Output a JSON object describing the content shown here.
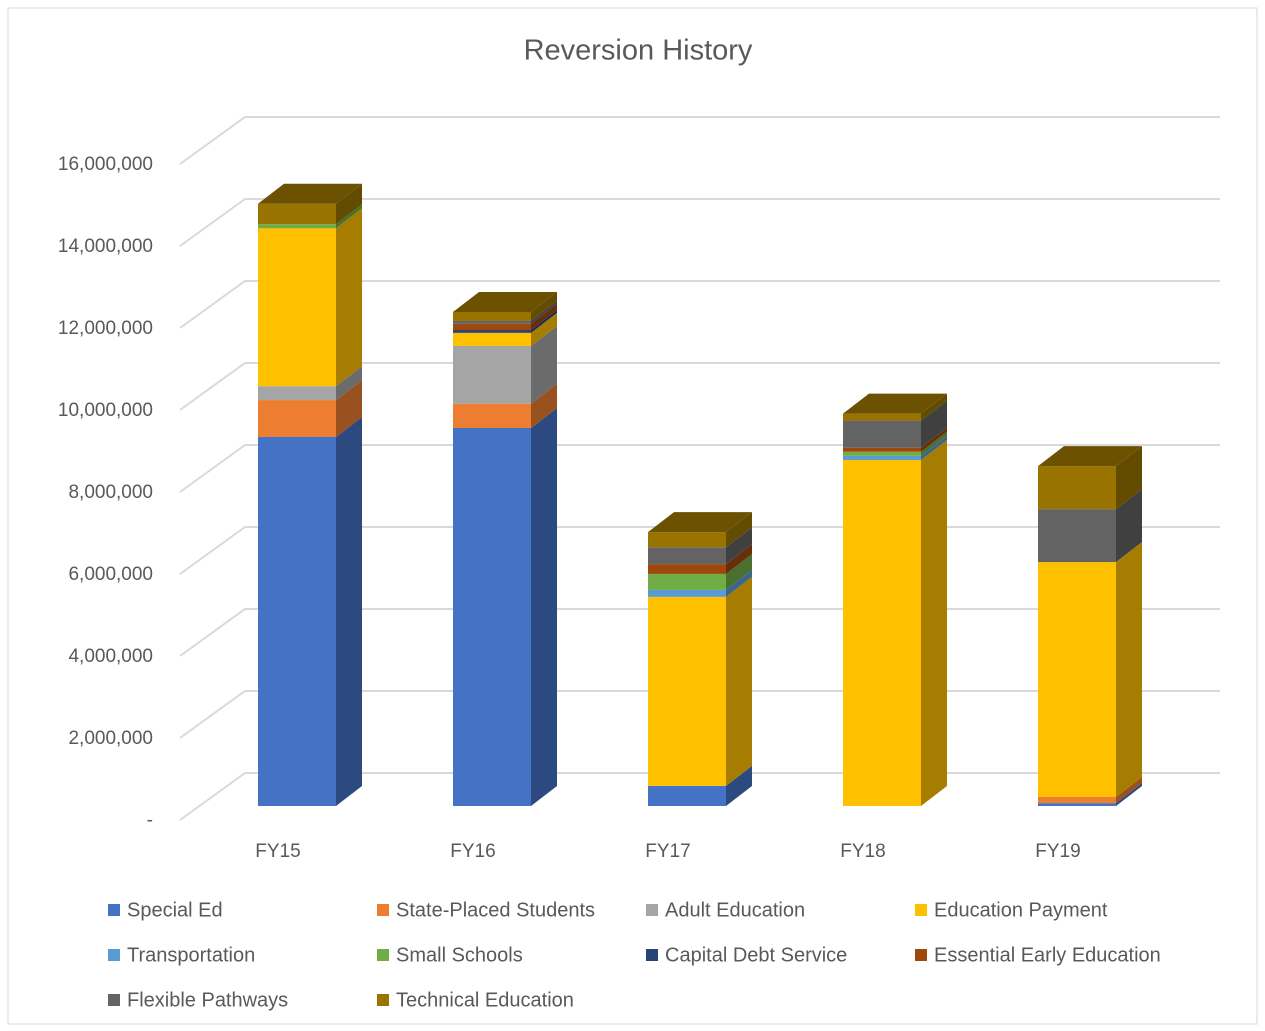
{
  "chart_data": {
    "type": "bar3d-stacked",
    "title": "Reversion History",
    "categories": [
      "FY15",
      "FY16",
      "FY17",
      "FY18",
      "FY19"
    ],
    "series": [
      {
        "name": "Special Ed",
        "color": "#4472c4",
        "values": [
          9000000,
          9220000,
          490000,
          0,
          70000
        ]
      },
      {
        "name": "State-Placed Students",
        "color": "#ed7d31",
        "values": [
          900000,
          590000,
          0,
          0,
          150000
        ]
      },
      {
        "name": "Adult Education",
        "color": "#a5a5a5",
        "values": [
          340000,
          1410000,
          0,
          0,
          0
        ]
      },
      {
        "name": "Education Payment",
        "color": "#ffc000",
        "values": [
          3850000,
          320000,
          4610000,
          8440000,
          5730000
        ]
      },
      {
        "name": "Transportation",
        "color": "#5b9bd5",
        "values": [
          0,
          0,
          170000,
          100000,
          0
        ]
      },
      {
        "name": "Small Schools",
        "color": "#70ad47",
        "values": [
          100000,
          0,
          390000,
          100000,
          0
        ]
      },
      {
        "name": "Capital Debt Service",
        "color": "#264478",
        "values": [
          0,
          70000,
          0,
          0,
          0
        ]
      },
      {
        "name": "Essential Early Education",
        "color": "#9e480e",
        "values": [
          0,
          150000,
          240000,
          100000,
          0
        ]
      },
      {
        "name": "Flexible Pathways",
        "color": "#636363",
        "values": [
          0,
          70000,
          410000,
          660000,
          1290000
        ]
      },
      {
        "name": "Technical Education",
        "color": "#997300",
        "values": [
          500000,
          220000,
          370000,
          170000,
          1050000
        ]
      }
    ],
    "ylim": [
      0,
      16000000
    ],
    "yticks": [
      {
        "value": 0,
        "label": "-"
      },
      {
        "value": 2000000,
        "label": "2,000,000"
      },
      {
        "value": 4000000,
        "label": "4,000,000"
      },
      {
        "value": 6000000,
        "label": "6,000,000"
      },
      {
        "value": 8000000,
        "label": "8,000,000"
      },
      {
        "value": 10000000,
        "label": "10,000,000"
      },
      {
        "value": 12000000,
        "label": "12,000,000"
      },
      {
        "value": 14000000,
        "label": "14,000,000"
      },
      {
        "value": 16000000,
        "label": "16,000,000"
      }
    ],
    "grid": true
  }
}
